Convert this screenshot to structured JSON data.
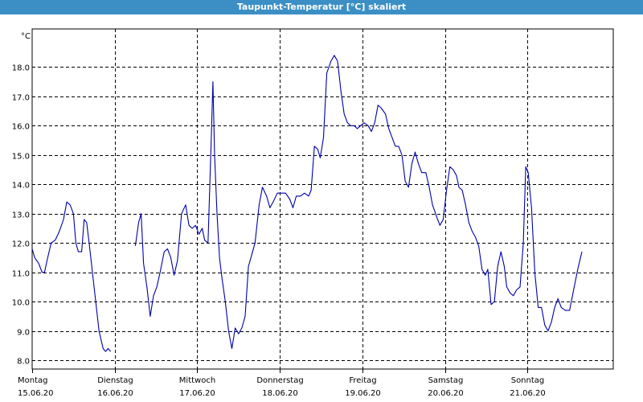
{
  "window": {
    "title": "Taupunkt-Temperatur [°C] skaliert"
  },
  "colors": {
    "titlebar": "#3b8fc4",
    "line": "#0000aa",
    "grid": "#000000",
    "background": "#ffffff"
  },
  "chart_data": {
    "type": "line",
    "title": "Taupunkt-Temperatur [°C] skaliert",
    "ylabel": "°C",
    "xlabel": "",
    "ylim": [
      7.7,
      19.3
    ],
    "xlim": [
      0,
      7
    ],
    "grid": true,
    "yticks": [
      8.0,
      9.0,
      10.0,
      11.0,
      12.0,
      13.0,
      14.0,
      15.0,
      16.0,
      17.0,
      18.0
    ],
    "ytick_labels": [
      "8.0",
      "9.0",
      "10.0",
      "11.0",
      "12.0",
      "13.0",
      "14.0",
      "15.0",
      "16.0",
      "17.0",
      "18.0"
    ],
    "xticks": [
      {
        "day": "Montag",
        "date": "15.06.20"
      },
      {
        "day": "Dienstag",
        "date": "16.06.20"
      },
      {
        "day": "Mittwoch",
        "date": "17.06.20"
      },
      {
        "day": "Donnerstag",
        "date": "18.06.20"
      },
      {
        "day": "Freitag",
        "date": "19.06.20"
      },
      {
        "day": "Samstag",
        "date": "20.06.20"
      },
      {
        "day": "Sonntag",
        "date": "21.06.20"
      }
    ],
    "series": [
      {
        "segments": [
          [
            [
              0.0,
              11.8
            ],
            [
              0.03,
              11.5
            ],
            [
              0.08,
              11.3
            ],
            [
              0.12,
              11.0
            ],
            [
              0.15,
              11.0
            ],
            [
              0.18,
              11.4
            ],
            [
              0.23,
              12.0
            ],
            [
              0.28,
              12.1
            ],
            [
              0.33,
              12.4
            ],
            [
              0.38,
              12.8
            ],
            [
              0.42,
              13.4
            ],
            [
              0.46,
              13.3
            ],
            [
              0.5,
              13.0
            ],
            [
              0.53,
              12.0
            ],
            [
              0.56,
              11.7
            ],
            [
              0.6,
              11.7
            ],
            [
              0.63,
              12.8
            ],
            [
              0.66,
              12.7
            ],
            [
              0.69,
              12.0
            ],
            [
              0.73,
              11.0
            ],
            [
              0.77,
              10.0
            ],
            [
              0.81,
              9.0
            ],
            [
              0.86,
              8.4
            ],
            [
              0.89,
              8.3
            ],
            [
              0.92,
              8.4
            ],
            [
              0.95,
              8.3
            ]
          ],
          [
            [
              1.25,
              11.9
            ],
            [
              1.29,
              12.7
            ],
            [
              1.32,
              13.0
            ],
            [
              1.35,
              11.3
            ],
            [
              1.39,
              10.5
            ],
            [
              1.43,
              9.5
            ],
            [
              1.47,
              10.2
            ],
            [
              1.51,
              10.5
            ],
            [
              1.55,
              11.0
            ],
            [
              1.6,
              11.7
            ],
            [
              1.64,
              11.8
            ],
            [
              1.68,
              11.5
            ],
            [
              1.72,
              10.9
            ],
            [
              1.76,
              11.4
            ],
            [
              1.81,
              13.0
            ],
            [
              1.86,
              13.3
            ],
            [
              1.9,
              12.6
            ],
            [
              1.94,
              12.5
            ],
            [
              1.98,
              12.6
            ],
            [
              2.02,
              12.3
            ],
            [
              2.06,
              12.5
            ],
            [
              2.09,
              12.1
            ],
            [
              2.13,
              12.0
            ],
            [
              2.17,
              15.6
            ],
            [
              2.19,
              17.5
            ],
            [
              2.21,
              15.0
            ],
            [
              2.24,
              13.0
            ],
            [
              2.27,
              11.5
            ],
            [
              2.3,
              10.8
            ],
            [
              2.34,
              10.0
            ],
            [
              2.38,
              9.0
            ],
            [
              2.42,
              8.4
            ],
            [
              2.46,
              9.1
            ],
            [
              2.5,
              8.9
            ],
            [
              2.54,
              9.1
            ],
            [
              2.58,
              9.5
            ],
            [
              2.62,
              11.2
            ],
            [
              2.66,
              11.6
            ],
            [
              2.7,
              12.0
            ],
            [
              2.75,
              13.3
            ],
            [
              2.79,
              13.9
            ],
            [
              2.84,
              13.6
            ],
            [
              2.88,
              13.2
            ],
            [
              2.92,
              13.4
            ],
            [
              2.97,
              13.7
            ],
            [
              3.02,
              13.7
            ],
            [
              3.07,
              13.7
            ],
            [
              3.12,
              13.5
            ],
            [
              3.16,
              13.2
            ],
            [
              3.2,
              13.6
            ],
            [
              3.25,
              13.6
            ],
            [
              3.3,
              13.7
            ],
            [
              3.35,
              13.6
            ],
            [
              3.38,
              13.8
            ],
            [
              3.42,
              15.3
            ],
            [
              3.46,
              15.2
            ],
            [
              3.49,
              14.9
            ],
            [
              3.53,
              15.6
            ],
            [
              3.57,
              17.8
            ],
            [
              3.62,
              18.2
            ],
            [
              3.66,
              18.4
            ],
            [
              3.7,
              18.2
            ],
            [
              3.74,
              17.2
            ],
            [
              3.78,
              16.4
            ],
            [
              3.82,
              16.1
            ],
            [
              3.86,
              16.0
            ],
            [
              3.9,
              16.0
            ],
            [
              3.94,
              15.9
            ],
            [
              3.98,
              16.0
            ],
            [
              4.02,
              16.1
            ],
            [
              4.07,
              16.0
            ],
            [
              4.11,
              15.8
            ],
            [
              4.15,
              16.1
            ],
            [
              4.19,
              16.7
            ],
            [
              4.23,
              16.6
            ],
            [
              4.28,
              16.4
            ],
            [
              4.32,
              15.9
            ],
            [
              4.36,
              15.6
            ],
            [
              4.4,
              15.3
            ],
            [
              4.44,
              15.3
            ],
            [
              4.48,
              15.0
            ],
            [
              4.52,
              14.1
            ],
            [
              4.56,
              13.9
            ],
            [
              4.6,
              14.7
            ],
            [
              4.64,
              15.1
            ],
            [
              4.68,
              14.7
            ],
            [
              4.72,
              14.4
            ],
            [
              4.77,
              14.4
            ],
            [
              4.81,
              13.9
            ],
            [
              4.85,
              13.3
            ],
            [
              4.9,
              12.9
            ],
            [
              4.94,
              12.6
            ],
            [
              4.98,
              12.8
            ],
            [
              5.02,
              13.8
            ],
            [
              5.06,
              14.6
            ],
            [
              5.1,
              14.5
            ],
            [
              5.14,
              14.3
            ],
            [
              5.17,
              13.9
            ],
            [
              5.21,
              13.8
            ],
            [
              5.25,
              13.3
            ],
            [
              5.29,
              12.7
            ],
            [
              5.33,
              12.4
            ],
            [
              5.37,
              12.2
            ],
            [
              5.41,
              11.9
            ],
            [
              5.45,
              11.1
            ],
            [
              5.49,
              10.9
            ],
            [
              5.52,
              11.1
            ],
            [
              5.56,
              9.9
            ],
            [
              5.6,
              10.0
            ],
            [
              5.64,
              11.2
            ],
            [
              5.68,
              11.7
            ],
            [
              5.72,
              11.2
            ],
            [
              5.75,
              10.5
            ],
            [
              5.79,
              10.3
            ],
            [
              5.83,
              10.2
            ],
            [
              5.87,
              10.4
            ],
            [
              5.91,
              10.5
            ],
            [
              5.95,
              12.0
            ],
            [
              5.98,
              14.6
            ],
            [
              6.01,
              14.4
            ],
            [
              6.05,
              13.2
            ],
            [
              6.09,
              11.0
            ],
            [
              6.13,
              9.8
            ],
            [
              6.17,
              9.8
            ],
            [
              6.21,
              9.2
            ],
            [
              6.25,
              9.0
            ],
            [
              6.29,
              9.3
            ],
            [
              6.33,
              9.8
            ],
            [
              6.37,
              10.1
            ],
            [
              6.41,
              9.8
            ],
            [
              6.46,
              9.7
            ],
            [
              6.51,
              9.7
            ],
            [
              6.56,
              10.4
            ],
            [
              6.61,
              11.1
            ],
            [
              6.66,
              11.7
            ]
          ]
        ]
      }
    ]
  }
}
